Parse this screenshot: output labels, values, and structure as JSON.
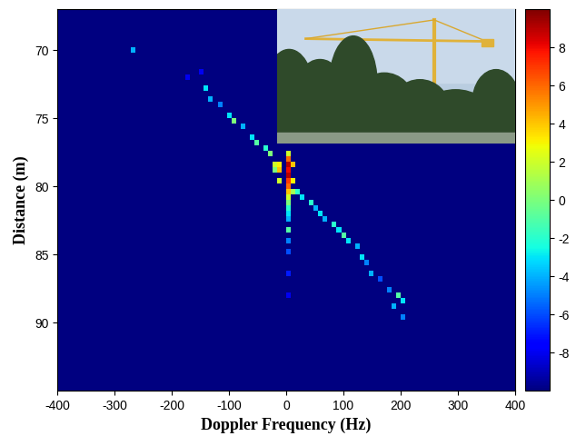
{
  "chart_data": {
    "type": "heatmap",
    "x_label": "Doppler Frequency (Hz)",
    "y_label": "Distance (m)",
    "xlim": [
      -400,
      400
    ],
    "xticks": [
      -400,
      -300,
      -200,
      -100,
      0,
      100,
      200,
      300,
      400
    ],
    "ylim": [
      95,
      67
    ],
    "yticks": [
      70,
      75,
      80,
      85,
      90
    ],
    "cell_size": [
      8,
      0.4
    ],
    "background": -10,
    "cells": [
      [
        -265,
        70,
        -4
      ],
      [
        -170,
        72,
        -8
      ],
      [
        -150,
        71.5,
        -8
      ],
      [
        -140,
        72.8,
        -3
      ],
      [
        -130,
        73.5,
        -4
      ],
      [
        -120,
        74,
        -5
      ],
      [
        -100,
        74.8,
        -3
      ],
      [
        -90,
        75.3,
        0
      ],
      [
        -80,
        75.8,
        -4
      ],
      [
        -60,
        76.3,
        -3
      ],
      [
        -50,
        76.8,
        -1
      ],
      [
        -40,
        77.3,
        -2
      ],
      [
        -30,
        77.8,
        0
      ],
      [
        -20,
        78.2,
        2
      ],
      [
        -10,
        78.3,
        3
      ],
      [
        -20,
        78.8,
        0
      ],
      [
        -10,
        79,
        4
      ],
      [
        -10,
        79.8,
        2
      ],
      [
        0,
        77.6,
        2
      ],
      [
        0,
        78,
        6
      ],
      [
        0,
        78.4,
        9
      ],
      [
        0,
        78.8,
        8
      ],
      [
        0,
        79.2,
        9
      ],
      [
        0,
        79.6,
        7
      ],
      [
        0,
        80,
        6
      ],
      [
        0,
        80.4,
        4
      ],
      [
        0,
        80.8,
        2
      ],
      [
        0,
        81.2,
        0
      ],
      [
        0,
        81.6,
        -2
      ],
      [
        0,
        82,
        -3
      ],
      [
        0,
        82.5,
        -4
      ],
      [
        0,
        83.2,
        -1
      ],
      [
        0,
        84,
        -5
      ],
      [
        0,
        85,
        -6
      ],
      [
        0,
        86.5,
        -7
      ],
      [
        0,
        88,
        -8
      ],
      [
        10,
        78.5,
        4
      ],
      [
        10,
        79.5,
        3
      ],
      [
        10,
        80.5,
        1
      ],
      [
        20,
        80.2,
        -2
      ],
      [
        30,
        80.8,
        -3
      ],
      [
        40,
        81.2,
        -2
      ],
      [
        50,
        81.6,
        -4
      ],
      [
        60,
        82,
        -3
      ],
      [
        70,
        82.4,
        -4
      ],
      [
        80,
        82.8,
        -2
      ],
      [
        90,
        83.2,
        -3
      ],
      [
        100,
        83.6,
        -1
      ],
      [
        110,
        84,
        -3
      ],
      [
        120,
        84.6,
        -4
      ],
      [
        130,
        85.3,
        -3
      ],
      [
        140,
        85.8,
        -5
      ],
      [
        150,
        86.3,
        -4
      ],
      [
        160,
        86.8,
        -6
      ],
      [
        180,
        87.8,
        -5
      ],
      [
        195,
        88,
        -1
      ],
      [
        200,
        88.4,
        -3
      ],
      [
        190,
        89,
        -4
      ],
      [
        200,
        89.5,
        -5
      ]
    ],
    "colorbar_lim": [
      -10,
      10
    ],
    "colorbar_ticks": [
      -8,
      -6,
      -4,
      -2,
      0,
      2,
      4,
      6,
      8
    ]
  }
}
